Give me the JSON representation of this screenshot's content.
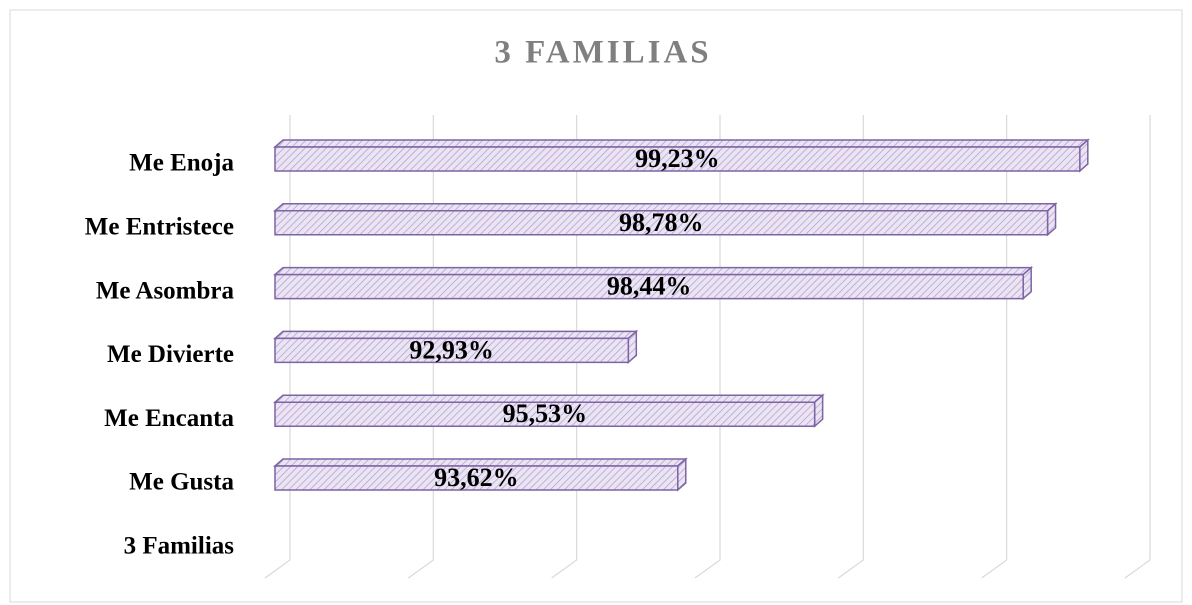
{
  "chart_data": {
    "type": "bar3d",
    "orientation": "horizontal",
    "title": "3 FAMILIAS",
    "categories": [
      "Me Enoja",
      "Me Entristece",
      "Me Asombra",
      "Me Divierte",
      "Me Encanta",
      "Me Gusta",
      "3 Familias"
    ],
    "values": [
      99.23,
      98.78,
      98.44,
      92.93,
      95.53,
      93.62,
      null
    ],
    "value_labels": [
      "99,23%",
      "98,78%",
      "98,44%",
      "92,93%",
      "95,53%",
      "93,62%",
      null
    ],
    "color": "#e4dcef",
    "edge_color": "#7d64a3",
    "xlim": [
      88,
      100
    ],
    "xticks": [
      88,
      90,
      92,
      94,
      96,
      98,
      100
    ],
    "grid": true
  }
}
